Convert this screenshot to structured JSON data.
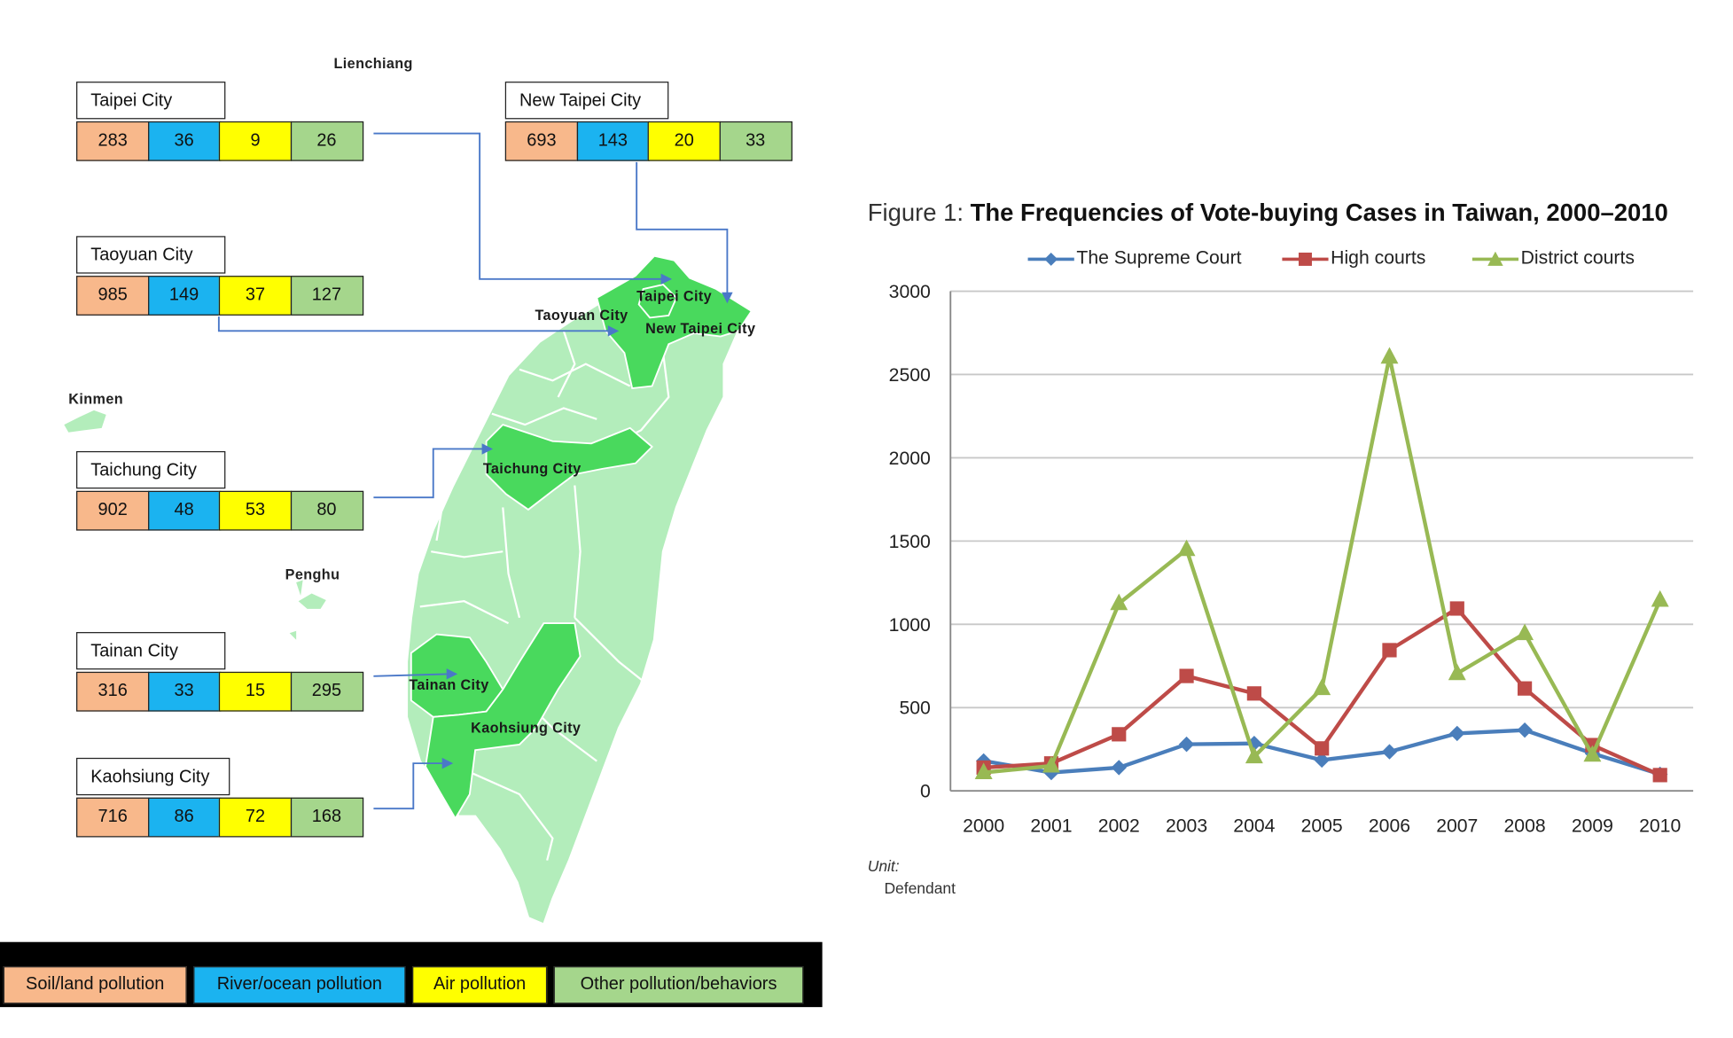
{
  "map": {
    "places": {
      "lienchiang": "Lienchiang",
      "kinmen": "Kinmen",
      "penghu": "Penghu"
    },
    "map_labels": {
      "taipei": "Taipei City",
      "taoyuan": "Taoyuan City",
      "new_taipei": "New Taipei City",
      "taichung": "Taichung City",
      "tainan": "Tainan City",
      "kaohsiung": "Kaohsiung City"
    },
    "cities": [
      {
        "name": "Taipei City",
        "soil": "283",
        "river": "36",
        "air": "9",
        "other": "26"
      },
      {
        "name": "New Taipei City",
        "soil": "693",
        "river": "143",
        "air": "20",
        "other": "33"
      },
      {
        "name": "Taoyuan City",
        "soil": "985",
        "river": "149",
        "air": "37",
        "other": "127"
      },
      {
        "name": "Taichung City",
        "soil": "902",
        "river": "48",
        "air": "53",
        "other": "80"
      },
      {
        "name": "Tainan City",
        "soil": "316",
        "river": "33",
        "air": "15",
        "other": "295"
      },
      {
        "name": "Kaohsiung City",
        "soil": "716",
        "river": "86",
        "air": "72",
        "other": "168"
      }
    ],
    "legend": {
      "soil": "Soil/land pollution",
      "river": "River/ocean pollution",
      "air": "Air pollution",
      "other": "Other pollution/behaviors"
    },
    "colors": {
      "soil": "#f8b88b",
      "river": "#1bb3f0",
      "air": "#ffff00",
      "other": "#a5d68c",
      "highlight": "#49d95d",
      "land": "#b3edbb",
      "connector": "#4a78c8"
    }
  },
  "chart_data": {
    "type": "line",
    "title_prefix": "Figure 1:",
    "title": "The Frequencies of Vote-buying Cases in Taiwan, 2000–2010",
    "unit_label": "Unit:",
    "unit_value": "Defendant",
    "x": [
      "2000",
      "2001",
      "2002",
      "2003",
      "2004",
      "2005",
      "2006",
      "2007",
      "2008",
      "2009",
      "2010"
    ],
    "ylim": [
      0,
      3000
    ],
    "yticks": [
      0,
      500,
      1000,
      1500,
      2000,
      2500,
      3000
    ],
    "grid": true,
    "legend_position": "top",
    "series": [
      {
        "name": "The Supreme Court",
        "color": "#4a7ebb",
        "marker": "diamond",
        "values": [
          180,
          110,
          140,
          280,
          285,
          185,
          235,
          345,
          365,
          225,
          100
        ]
      },
      {
        "name": "High courts",
        "color": "#be4b48",
        "marker": "square",
        "values": [
          140,
          165,
          340,
          690,
          585,
          255,
          845,
          1095,
          615,
          275,
          95
        ]
      },
      {
        "name": "District courts",
        "color": "#98b954",
        "marker": "triangle",
        "values": [
          110,
          150,
          1125,
          1450,
          205,
          615,
          2605,
          705,
          945,
          215,
          1145
        ]
      }
    ]
  }
}
